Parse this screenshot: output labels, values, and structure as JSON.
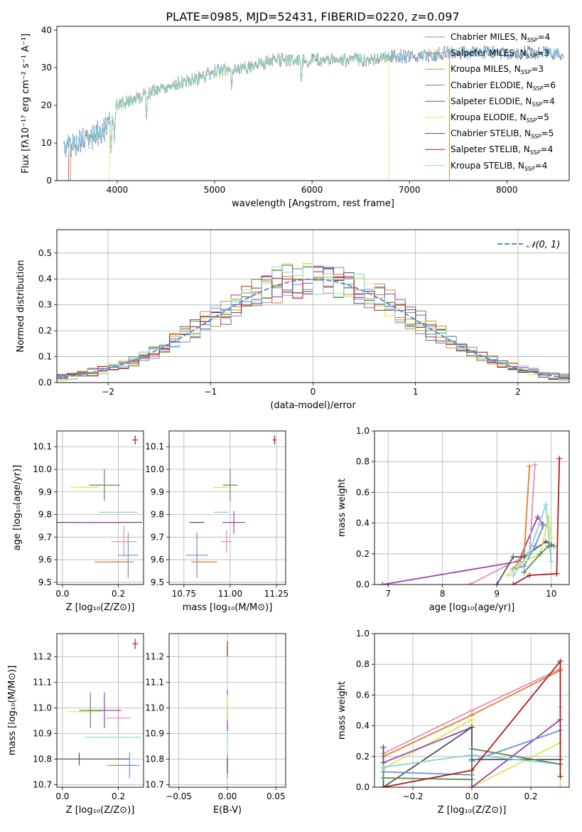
{
  "figure": {
    "title": "PLATE=0985, MJD=52431, FIBERID=0220, z=0.097"
  },
  "colors": {
    "chabrier_miles": "#6b8fd6",
    "salpeter_miles": "#e07b2a",
    "kroupa_miles": "#c8962a",
    "chabrier_elodie": "#5a8a5a",
    "salpeter_elodie": "#9a3fb4",
    "kroupa_elodie": "#d7e84a",
    "chabrier_stelib": "#555555",
    "salpeter_stelib": "#b01c1c",
    "kroupa_stelib": "#82d4dc",
    "pink": "#e48bb8",
    "normal_curve": "#5b8ad4",
    "grid": "#b0b0b0"
  },
  "chart_data": [
    {
      "id": "spectrum",
      "type": "line",
      "xlabel": "wavelength [Angstrom, rest frame]",
      "ylabel": "Flux [fλ10⁻¹⁷ erg cm⁻² s⁻¹ A⁻¹]",
      "xlim": [
        3380,
        8640
      ],
      "ylim": [
        0,
        41
      ],
      "xticks": [
        4000,
        5000,
        6000,
        7000,
        8000
      ],
      "yticks": [
        0,
        10,
        20,
        30,
        40
      ],
      "grid": false,
      "legend_placement": "top-right",
      "legend": [
        "Chabrier MILES, N_SSP=4",
        "Salpeter MILES, N_SSP=3",
        "Kroupa MILES, N_SSP=3",
        "Chabrier ELODIE, N_SSP=6",
        "Salpeter ELODIE, N_SSP=4",
        "Kroupa ELODIE, N_SSP=5",
        "Chabrier STELIB, N_SSP=5",
        "Salpeter STELIB, N_SSP=4",
        "Kroupa STELIB, N_SSP=4"
      ],
      "continuum": [
        [
          3450,
          9
        ],
        [
          3700,
          11
        ],
        [
          3900,
          14
        ],
        [
          4000,
          20
        ],
        [
          4200,
          22
        ],
        [
          4500,
          25
        ],
        [
          4800,
          27
        ],
        [
          5000,
          29
        ],
        [
          5300,
          30
        ],
        [
          5600,
          32
        ],
        [
          5900,
          32
        ],
        [
          6200,
          32
        ],
        [
          6500,
          32
        ],
        [
          6800,
          33
        ],
        [
          7100,
          33
        ],
        [
          7400,
          34
        ],
        [
          7700,
          34
        ],
        [
          8000,
          34
        ],
        [
          8300,
          34
        ],
        [
          8580,
          34
        ]
      ]
    },
    {
      "id": "residuals",
      "type": "bar",
      "xlabel": "(data-model)/error",
      "ylabel": "Normed distribution",
      "xlim": [
        -2.5,
        2.5
      ],
      "ylim": [
        0,
        0.59
      ],
      "xticks": [
        -2,
        -1,
        0,
        1,
        2
      ],
      "yticks": [
        0.0,
        0.1,
        0.2,
        0.3,
        0.4,
        0.5
      ],
      "grid": true,
      "legend_placement": "top-right",
      "legend": [
        "𝒩(0, 1)"
      ]
    },
    {
      "id": "age-vs-z",
      "type": "scatter",
      "xlabel": "Z [log₁₀(Z/Z⊙)]",
      "ylabel": "age  [log₁₀(age/yr)]",
      "xlim": [
        -0.02,
        0.29
      ],
      "ylim": [
        9.49,
        10.17
      ],
      "xticks": [
        0.0,
        0.2
      ],
      "yticks": [
        9.5,
        9.6,
        9.7,
        9.8,
        9.9,
        10.0,
        10.1
      ],
      "grid": true,
      "points": [
        {
          "x": 0.115,
          "y": 9.765,
          "xerr": 0.17,
          "yerr": 0.0,
          "color": "chabrier_stelib"
        },
        {
          "x": 0.115,
          "y": 9.765,
          "xerr": 0.09,
          "yerr": 0.0,
          "color": "salpeter_elodie"
        },
        {
          "x": 0.185,
          "y": 9.59,
          "xerr": 0.07,
          "yerr": 0.0,
          "color": "salpeter_miles"
        },
        {
          "x": 0.235,
          "y": 9.62,
          "xerr": 0.035,
          "yerr": 0.1,
          "color": "chabrier_miles"
        },
        {
          "x": 0.22,
          "y": 9.68,
          "xerr": 0.045,
          "yerr": 0.07,
          "color": "pink"
        },
        {
          "x": 0.2,
          "y": 9.81,
          "xerr": 0.07,
          "yerr": 0.0,
          "color": "kroupa_stelib"
        },
        {
          "x": 0.15,
          "y": 9.93,
          "xerr": 0.055,
          "yerr": 0.07,
          "color": "chabrier_elodie"
        },
        {
          "x": 0.08,
          "y": 9.92,
          "xerr": 0.05,
          "yerr": 0.0,
          "color": "kroupa_elodie"
        },
        {
          "x": 0.26,
          "y": 10.13,
          "xerr": 0.01,
          "yerr": 0.02,
          "color": "salpeter_stelib"
        }
      ]
    },
    {
      "id": "age-vs-mass",
      "type": "scatter",
      "xlabel": "mass [log₁₀(M/M⊙)]",
      "ylabel": "",
      "xlim": [
        10.67,
        11.3
      ],
      "ylim": [
        9.49,
        10.17
      ],
      "xticks": [
        10.75,
        11.0,
        11.25
      ],
      "yticks": [
        9.5,
        9.6,
        9.7,
        9.8,
        9.9,
        10.0,
        10.1
      ],
      "grid": true,
      "points": [
        {
          "x": 10.82,
          "y": 9.765,
          "xerr": 0.04,
          "yerr": 0.0,
          "color": "chabrier_stelib"
        },
        {
          "x": 10.86,
          "y": 9.59,
          "xerr": 0.07,
          "yerr": 0.0,
          "color": "salpeter_miles"
        },
        {
          "x": 10.82,
          "y": 9.62,
          "xerr": 0.06,
          "yerr": 0.1,
          "color": "chabrier_miles"
        },
        {
          "x": 10.98,
          "y": 9.68,
          "xerr": 0.03,
          "yerr": 0.05,
          "color": "pink"
        },
        {
          "x": 11.02,
          "y": 9.765,
          "xerr": 0.06,
          "yerr": 0.05,
          "color": "salpeter_elodie"
        },
        {
          "x": 10.95,
          "y": 9.81,
          "xerr": 0.04,
          "yerr": 0.0,
          "color": "kroupa_stelib"
        },
        {
          "x": 11.0,
          "y": 9.93,
          "xerr": 0.04,
          "yerr": 0.07,
          "color": "chabrier_elodie"
        },
        {
          "x": 10.95,
          "y": 9.92,
          "xerr": 0.04,
          "yerr": 0.0,
          "color": "kroupa_elodie"
        },
        {
          "x": 11.24,
          "y": 10.13,
          "xerr": 0.01,
          "yerr": 0.02,
          "color": "salpeter_stelib"
        }
      ]
    },
    {
      "id": "weight-vs-age",
      "type": "line",
      "xlabel": "age  [log₁₀(age/yr)]",
      "ylabel": "mass weight",
      "xlim": [
        6.75,
        10.33
      ],
      "ylim": [
        0.0,
        1.0
      ],
      "xticks": [
        7,
        8,
        9,
        10
      ],
      "yticks": [
        0.0,
        0.2,
        0.4,
        0.6,
        0.8,
        1.0
      ],
      "grid": true,
      "series": [
        {
          "color": "salpeter_elodie",
          "points": [
            [
              6.9,
              0.0
            ],
            [
              9.4,
              0.15
            ],
            [
              9.75,
              0.44
            ],
            [
              9.85,
              0.39
            ]
          ]
        },
        {
          "color": "pink",
          "points": [
            [
              8.5,
              0.0
            ],
            [
              9.6,
              0.2
            ],
            [
              9.7,
              0.78
            ]
          ]
        },
        {
          "color": "salpeter_miles",
          "points": [
            [
              9.3,
              0.1
            ],
            [
              9.5,
              0.19
            ],
            [
              9.6,
              0.77
            ]
          ]
        },
        {
          "color": "chabrier_stelib",
          "points": [
            [
              9.0,
              0.0
            ],
            [
              9.3,
              0.18
            ],
            [
              9.5,
              0.18
            ],
            [
              9.9,
              0.28
            ],
            [
              10.0,
              0.26
            ]
          ]
        },
        {
          "color": "chabrier_miles",
          "points": [
            [
              9.3,
              0.1
            ],
            [
              9.5,
              0.12
            ],
            [
              9.7,
              0.25
            ],
            [
              9.85,
              0.38
            ]
          ]
        },
        {
          "color": "kroupa_elodie",
          "points": [
            [
              9.2,
              0.06
            ],
            [
              9.4,
              0.13
            ],
            [
              9.8,
              0.2
            ],
            [
              9.95,
              0.44
            ],
            [
              10.0,
              0.3
            ]
          ]
        },
        {
          "color": "kroupa_stelib",
          "points": [
            [
              9.3,
              0.06
            ],
            [
              9.6,
              0.21
            ],
            [
              9.9,
              0.52
            ],
            [
              10.0,
              0.15
            ]
          ]
        },
        {
          "color": "chabrier_elodie",
          "points": [
            [
              9.5,
              0.08
            ],
            [
              9.8,
              0.2
            ],
            [
              9.95,
              0.25
            ],
            [
              10.05,
              0.25
            ]
          ]
        },
        {
          "color": "salpeter_stelib",
          "points": [
            [
              9.3,
              0.0
            ],
            [
              9.6,
              0.06
            ],
            [
              10.1,
              0.07
            ],
            [
              10.15,
              0.82
            ]
          ]
        }
      ]
    },
    {
      "id": "mass-vs-z",
      "type": "scatter",
      "xlabel": "Z [log₁₀(Z/Z⊙)]",
      "ylabel": "mass [log₁₀(M/M⊙)]",
      "xlim": [
        -0.02,
        0.29
      ],
      "ylim": [
        10.69,
        11.29
      ],
      "xticks": [
        0.0,
        0.2
      ],
      "yticks": [
        10.7,
        10.8,
        10.9,
        11.0,
        11.1,
        11.2
      ],
      "grid": true,
      "points": [
        {
          "x": 0.06,
          "y": 10.8,
          "xerr": 0.18,
          "yerr": 0.025,
          "color": "chabrier_stelib"
        },
        {
          "x": 0.21,
          "y": 10.775,
          "xerr": 0.05,
          "yerr": 0.0,
          "color": "salpeter_miles"
        },
        {
          "x": 0.24,
          "y": 10.775,
          "xerr": 0.035,
          "yerr": 0.05,
          "color": "chabrier_miles"
        },
        {
          "x": 0.18,
          "y": 10.885,
          "xerr": 0.1,
          "yerr": 0.0,
          "color": "kroupa_stelib"
        },
        {
          "x": 0.2,
          "y": 10.96,
          "xerr": 0.045,
          "yerr": 0.05,
          "color": "pink"
        },
        {
          "x": 0.15,
          "y": 10.99,
          "xerr": 0.06,
          "yerr": 0.07,
          "color": "salpeter_elodie"
        },
        {
          "x": 0.08,
          "y": 10.985,
          "xerr": 0.06,
          "yerr": 0.0,
          "color": "kroupa_elodie"
        },
        {
          "x": 0.1,
          "y": 10.99,
          "xerr": 0.04,
          "yerr": 0.07,
          "color": "chabrier_elodie"
        },
        {
          "x": 0.26,
          "y": 11.25,
          "xerr": 0.01,
          "yerr": 0.02,
          "color": "salpeter_stelib"
        }
      ]
    },
    {
      "id": "mass-vs-ebv",
      "type": "scatter",
      "xlabel": "E(B-V)",
      "ylabel": "",
      "xlim": [
        -0.06,
        0.06
      ],
      "ylim": [
        10.69,
        11.29
      ],
      "xticks": [
        -0.05,
        0.0,
        0.05
      ],
      "yticks": [
        10.7,
        10.8,
        10.9,
        11.0,
        11.1,
        11.2
      ],
      "grid": true,
      "points": [
        {
          "x": 0.0,
          "y": 10.775,
          "xerr": 0.0,
          "yerr": 0.05,
          "color": "chabrier_miles"
        },
        {
          "x": 0.0,
          "y": 10.785,
          "xerr": 0.0,
          "yerr": 0.04,
          "color": "chabrier_stelib"
        },
        {
          "x": 0.0,
          "y": 10.885,
          "xerr": 0.0,
          "yerr": 0.08,
          "color": "kroupa_stelib"
        },
        {
          "x": 0.0,
          "y": 10.96,
          "xerr": 0.0,
          "yerr": 0.05,
          "color": "pink"
        },
        {
          "x": 0.0,
          "y": 10.99,
          "xerr": 0.0,
          "yerr": 0.08,
          "color": "salpeter_elodie"
        },
        {
          "x": 0.0,
          "y": 11.0,
          "xerr": 0.0,
          "yerr": 0.05,
          "color": "kroupa_elodie"
        },
        {
          "x": 0.0,
          "y": 11.23,
          "xerr": 0.0,
          "yerr": 0.03,
          "color": "salpeter_stelib"
        }
      ]
    },
    {
      "id": "weight-vs-z",
      "type": "line",
      "xlabel": "Z [log₁₀(Z/Z⊙)]",
      "ylabel": "mass weight",
      "xlim": [
        -0.33,
        0.33
      ],
      "ylim": [
        0.0,
        1.0
      ],
      "xticks": [
        -0.2,
        0.0,
        0.2
      ],
      "yticks": [
        0.0,
        0.2,
        0.4,
        0.6,
        0.8,
        1.0
      ],
      "grid": true,
      "series": [
        {
          "color": "pink",
          "points": [
            [
              -0.3,
              0.22
            ],
            [
              0.0,
              0.5
            ],
            [
              0.3,
              0.77
            ]
          ]
        },
        {
          "color": "salpeter_miles",
          "points": [
            [
              -0.3,
              0.2
            ],
            [
              0.0,
              0.47
            ],
            [
              0.3,
              0.76
            ]
          ]
        },
        {
          "color": "kroupa_elodie",
          "points": [
            [
              -0.3,
              0.12
            ],
            [
              0.0,
              0.44
            ],
            [
              0.0,
              0.0
            ],
            [
              0.3,
              0.29
            ],
            [
              0.3,
              0.0
            ]
          ]
        },
        {
          "color": "salpeter_elodie",
          "points": [
            [
              -0.3,
              0.16
            ],
            [
              0.0,
              0.39
            ],
            [
              0.0,
              0.0
            ],
            [
              0.3,
              0.44
            ]
          ]
        },
        {
          "color": "chabrier_stelib",
          "points": [
            [
              -0.3,
              0.26
            ],
            [
              -0.3,
              0.0
            ],
            [
              0.0,
              0.39
            ],
            [
              0.0,
              0.18
            ],
            [
              0.3,
              0.18
            ]
          ]
        },
        {
          "color": "chabrier_miles",
          "points": [
            [
              -0.3,
              0.1
            ],
            [
              0.0,
              0.08
            ],
            [
              0.0,
              0.17
            ],
            [
              0.3,
              0.37
            ]
          ]
        },
        {
          "color": "kroupa_stelib",
          "points": [
            [
              -0.3,
              0.13
            ],
            [
              0.0,
              0.21
            ],
            [
              0.3,
              0.15
            ],
            [
              0.3,
              0.52
            ]
          ]
        },
        {
          "color": "chabrier_elodie",
          "points": [
            [
              -0.3,
              0.06
            ],
            [
              0.0,
              0.05
            ],
            [
              0.0,
              0.25
            ],
            [
              0.3,
              0.15
            ]
          ]
        },
        {
          "color": "salpeter_stelib",
          "points": [
            [
              -0.3,
              0.0
            ],
            [
              0.0,
              0.11
            ],
            [
              0.3,
              0.82
            ],
            [
              0.3,
              0.07
            ]
          ]
        }
      ]
    }
  ]
}
